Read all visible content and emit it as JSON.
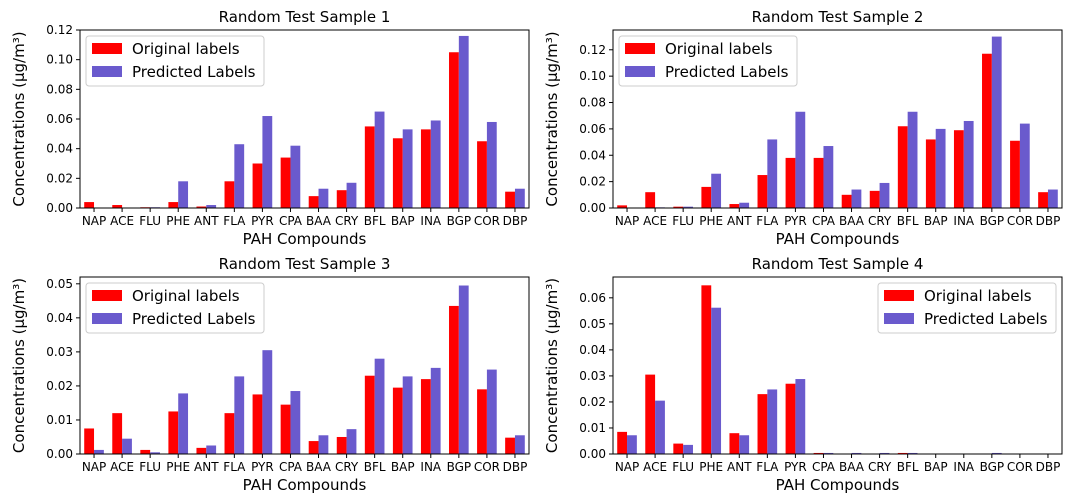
{
  "figure": {
    "legend": {
      "original": "Original labels",
      "predicted": "Predicted Labels"
    },
    "colors": {
      "original": "#ff0000",
      "predicted": "#6a5acd"
    }
  },
  "chart_data": [
    {
      "type": "bar",
      "title": "Random Test Sample 1",
      "xlabel": "PAH Compounds",
      "ylabel": "Concentrations (μg/m³)",
      "categories": [
        "NAP",
        "ACE",
        "FLU",
        "PHE",
        "ANT",
        "FLA",
        "PYR",
        "CPA",
        "BAA",
        "CRY",
        "BFL",
        "BAP",
        "INA",
        "BGP",
        "COR",
        "DBP"
      ],
      "series": [
        {
          "name": "Original labels",
          "values": [
            0.004,
            0.002,
            0.0005,
            0.004,
            0.001,
            0.018,
            0.03,
            0.034,
            0.008,
            0.012,
            0.055,
            0.047,
            0.053,
            0.105,
            0.045,
            0.011
          ]
        },
        {
          "name": "Predicted Labels",
          "values": [
            0.0,
            0.0,
            0.0005,
            0.018,
            0.002,
            0.043,
            0.062,
            0.042,
            0.013,
            0.017,
            0.065,
            0.053,
            0.059,
            0.116,
            0.058,
            0.013
          ]
        }
      ],
      "ylim": [
        0,
        0.12
      ],
      "yticks": [
        0.0,
        0.02,
        0.04,
        0.06,
        0.08,
        0.1,
        0.12
      ],
      "ytick_labels": [
        "0.00",
        "0.02",
        "0.04",
        "0.06",
        "0.08",
        "0.10",
        "0.12"
      ],
      "legend_position": "top-left"
    },
    {
      "type": "bar",
      "title": "Random Test Sample 2",
      "xlabel": "PAH Compounds",
      "ylabel": "Concentrations (μg/m³)",
      "categories": [
        "NAP",
        "ACE",
        "FLU",
        "PHE",
        "ANT",
        "FLA",
        "PYR",
        "CPA",
        "BAA",
        "CRY",
        "BFL",
        "BAP",
        "INA",
        "BGP",
        "COR",
        "DBP"
      ],
      "series": [
        {
          "name": "Original labels",
          "values": [
            0.002,
            0.012,
            0.001,
            0.016,
            0.003,
            0.025,
            0.038,
            0.038,
            0.01,
            0.013,
            0.062,
            0.052,
            0.059,
            0.117,
            0.051,
            0.012
          ]
        },
        {
          "name": "Predicted Labels",
          "values": [
            0.0,
            0.0005,
            0.001,
            0.026,
            0.004,
            0.052,
            0.073,
            0.047,
            0.014,
            0.019,
            0.073,
            0.06,
            0.066,
            0.13,
            0.064,
            0.014
          ]
        }
      ],
      "ylim": [
        0,
        0.135
      ],
      "yticks": [
        0.0,
        0.02,
        0.04,
        0.06,
        0.08,
        0.1,
        0.12
      ],
      "ytick_labels": [
        "0.00",
        "0.02",
        "0.04",
        "0.06",
        "0.08",
        "0.10",
        "0.12"
      ],
      "legend_position": "top-left"
    },
    {
      "type": "bar",
      "title": "Random Test Sample 3",
      "xlabel": "PAH Compounds",
      "ylabel": "Concentrations (μg/m³)",
      "categories": [
        "NAP",
        "ACE",
        "FLU",
        "PHE",
        "ANT",
        "FLA",
        "PYR",
        "CPA",
        "BAA",
        "CRY",
        "BFL",
        "BAP",
        "INA",
        "BGP",
        "COR",
        "DBP"
      ],
      "series": [
        {
          "name": "Original labels",
          "values": [
            0.0075,
            0.012,
            0.0012,
            0.0125,
            0.0018,
            0.012,
            0.0175,
            0.0145,
            0.0038,
            0.005,
            0.023,
            0.0195,
            0.022,
            0.0435,
            0.019,
            0.0048
          ]
        },
        {
          "name": "Predicted Labels",
          "values": [
            0.0012,
            0.0045,
            0.0005,
            0.0178,
            0.0025,
            0.0228,
            0.0305,
            0.0185,
            0.0055,
            0.0073,
            0.028,
            0.0228,
            0.0253,
            0.0495,
            0.0248,
            0.0055
          ]
        }
      ],
      "ylim": [
        0,
        0.052
      ],
      "yticks": [
        0.0,
        0.01,
        0.02,
        0.03,
        0.04,
        0.05
      ],
      "ytick_labels": [
        "0.00",
        "0.01",
        "0.02",
        "0.03",
        "0.04",
        "0.05"
      ],
      "legend_position": "top-left"
    },
    {
      "type": "bar",
      "title": "Random Test Sample 4",
      "xlabel": "PAH Compounds",
      "ylabel": "Concentrations (μg/m³)",
      "categories": [
        "NAP",
        "ACE",
        "FLU",
        "PHE",
        "ANT",
        "FLA",
        "PYR",
        "CPA",
        "BAA",
        "CRY",
        "BFL",
        "BAP",
        "INA",
        "BGP",
        "COR",
        "DBP"
      ],
      "series": [
        {
          "name": "Original labels",
          "values": [
            0.0085,
            0.0305,
            0.004,
            0.0648,
            0.008,
            0.023,
            0.027,
            0.0004,
            0.0,
            0.0,
            0.0004,
            0.0,
            0.0,
            0.0,
            0.0,
            0.0
          ]
        },
        {
          "name": "Predicted Labels",
          "values": [
            0.0072,
            0.0205,
            0.0035,
            0.0562,
            0.0072,
            0.0248,
            0.0288,
            0.0004,
            0.0004,
            0.0004,
            0.0004,
            0.0,
            0.0,
            0.0004,
            0.0,
            0.0
          ]
        }
      ],
      "ylim": [
        0,
        0.068
      ],
      "yticks": [
        0.0,
        0.01,
        0.02,
        0.03,
        0.04,
        0.05,
        0.06
      ],
      "ytick_labels": [
        "0.00",
        "0.01",
        "0.02",
        "0.03",
        "0.04",
        "0.05",
        "0.06"
      ],
      "legend_position": "top-right"
    }
  ]
}
